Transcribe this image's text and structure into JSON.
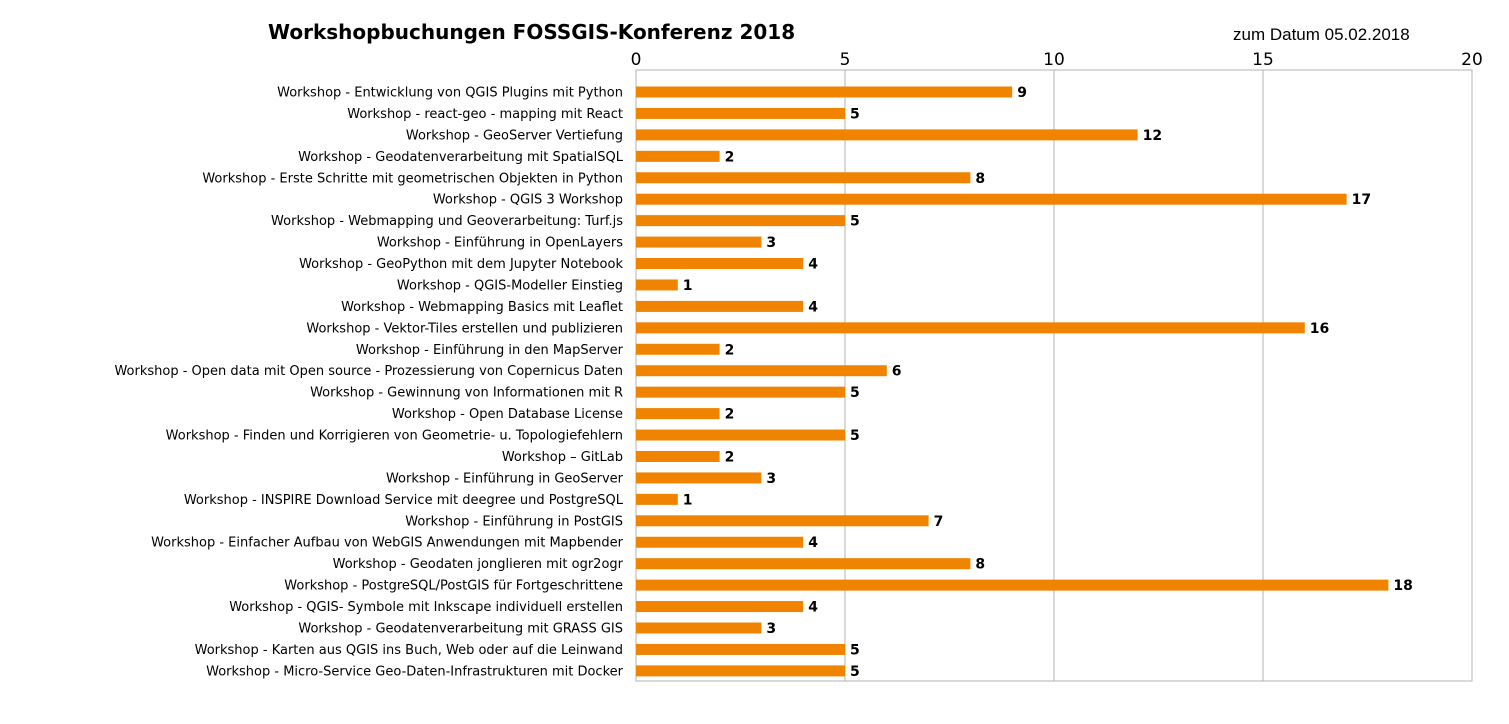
{
  "chart_data": {
    "type": "bar",
    "orientation": "horizontal",
    "title": "Workshopbuchungen FOSSGIS-Konferenz 2018",
    "subtitle": "zum Datum 05.02.2018",
    "xlim": [
      0,
      20
    ],
    "xticks": [
      0,
      5,
      10,
      15,
      20
    ],
    "x_axis_position": "top",
    "grid": true,
    "legend": "none",
    "bar_color": "#f08300",
    "categories": [
      "Workshop - Entwicklung von QGIS Plugins mit Python",
      "Workshop - react-geo - mapping mit React",
      "Workshop - GeoServer Vertiefung",
      "Workshop - Geodatenverarbeitung mit SpatialSQL",
      "Workshop - Erste Schritte mit geometrischen Objekten in Python",
      "Workshop - QGIS 3 Workshop",
      "Workshop - Webmapping und Geoverarbeitung: Turf.js",
      "Workshop - Einführung in OpenLayers",
      "Workshop - GeoPython mit dem Jupyter Notebook",
      "Workshop - QGIS-Modeller Einstieg",
      "Workshop - Webmapping Basics mit Leaflet",
      "Workshop - Vektor-Tiles erstellen und publizieren",
      "Workshop - Einführung in den MapServer",
      "Workshop - Open data mit Open source - Prozessierung von Copernicus Daten",
      "Workshop - Gewinnung von Informationen mit R",
      "Workshop - Open Database License",
      "Workshop - Finden und Korrigieren von Geometrie- u. Topologiefehlern",
      "Workshop – GitLab",
      "Workshop - Einführung in GeoServer",
      "Workshop - INSPIRE Download Service mit deegree und PostgreSQL",
      "Workshop - Einführung in PostGIS",
      "Workshop - Einfacher Aufbau von WebGIS Anwendungen mit Mapbender",
      "Workshop - Geodaten jonglieren mit ogr2ogr",
      "Workshop - PostgreSQL/PostGIS für Fortgeschrittene",
      "Workshop - QGIS- Symbole mit Inkscape individuell erstellen",
      "Workshop - Geodatenverarbeitung mit GRASS GIS",
      "Workshop - Karten aus QGIS ins Buch, Web oder auf die Leinwand",
      "Workshop - Micro-Service Geo-Daten-Infrastrukturen mit Docker"
    ],
    "values": [
      9,
      5,
      12,
      2,
      8,
      17,
      5,
      3,
      4,
      1,
      4,
      16,
      2,
      6,
      5,
      2,
      5,
      2,
      3,
      1,
      7,
      4,
      8,
      18,
      4,
      3,
      5,
      5
    ]
  }
}
